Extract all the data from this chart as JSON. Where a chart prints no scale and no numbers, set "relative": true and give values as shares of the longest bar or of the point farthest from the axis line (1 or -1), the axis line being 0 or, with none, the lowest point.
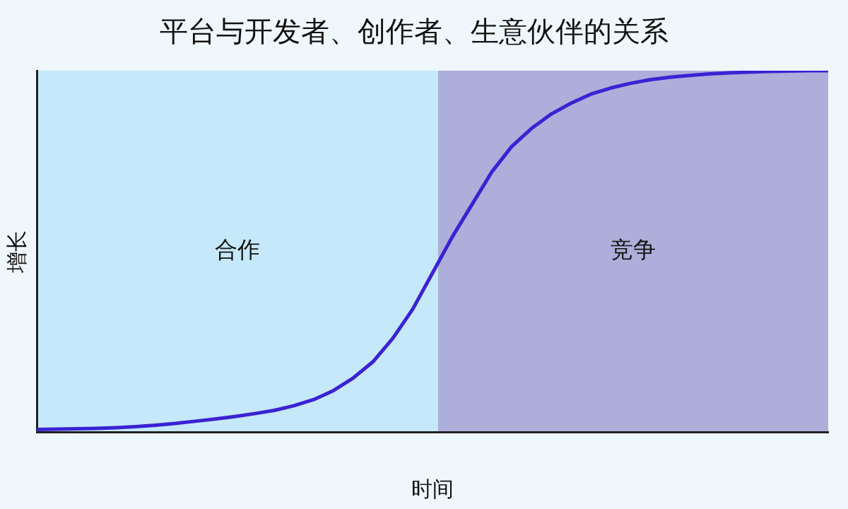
{
  "chart_data": {
    "type": "line",
    "title": "平台与开发者、创作者、生意伙伴的关系",
    "xlabel": "时间",
    "ylabel": "增长",
    "relative": true,
    "categories": [
      null,
      null,
      null,
      null,
      null,
      null,
      null,
      null,
      null,
      null,
      null,
      null,
      null,
      null,
      null,
      null,
      null,
      null,
      null,
      null,
      null,
      null,
      null,
      null,
      null,
      null,
      null,
      null,
      null,
      null,
      null,
      null,
      null,
      null,
      null,
      null,
      null,
      null,
      null,
      null,
      null
    ],
    "series": [
      {
        "color": "#3b22d4",
        "values": [
          0.007,
          0.008,
          0.009,
          0.01,
          0.012,
          0.015,
          0.019,
          0.024,
          0.03,
          0.036,
          0.043,
          0.051,
          0.06,
          0.073,
          0.09,
          0.115,
          0.15,
          0.195,
          0.26,
          0.34,
          0.44,
          0.54,
          0.63,
          0.72,
          0.79,
          0.84,
          0.88,
          0.91,
          0.935,
          0.952,
          0.965,
          0.975,
          0.982,
          0.987,
          0.991,
          0.994,
          0.996,
          0.998,
          0.999,
          1,
          1
        ]
      }
    ],
    "annotations": [
      "合作",
      "竞争"
    ],
    "marker": "none"
  }
}
